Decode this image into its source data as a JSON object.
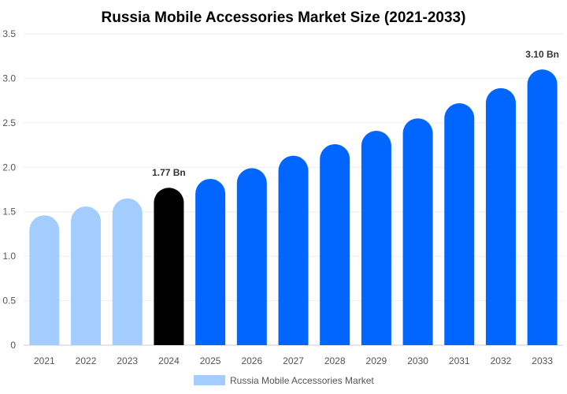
{
  "chart_data": {
    "type": "bar",
    "title": "Russia Mobile Accessories Market Size (2021-2033)",
    "xlabel": "",
    "ylabel": "",
    "ylim": [
      0,
      3.5
    ],
    "yticks": [
      "0",
      "0.5",
      "1.0",
      "1.5",
      "2.0",
      "2.5",
      "3.0",
      "3.5"
    ],
    "grid": true,
    "legend_placement": "bottom",
    "categories": [
      "2021",
      "2022",
      "2023",
      "2024",
      "2025",
      "2026",
      "2027",
      "2028",
      "2029",
      "2030",
      "2031",
      "2032",
      "2033"
    ],
    "series": [
      {
        "name": "Russia Mobile Accessories Market",
        "values": [
          1.46,
          1.56,
          1.65,
          1.77,
          1.87,
          1.99,
          2.13,
          2.26,
          2.41,
          2.55,
          2.72,
          2.89,
          3.1
        ]
      }
    ],
    "data_labels": {
      "3": "1.77 Bn",
      "12": "3.10 Bn"
    },
    "colors": {
      "historical": "#a3cdff",
      "current": "#000000",
      "forecast": "#0066ff",
      "legend": "#a3cdff"
    }
  }
}
